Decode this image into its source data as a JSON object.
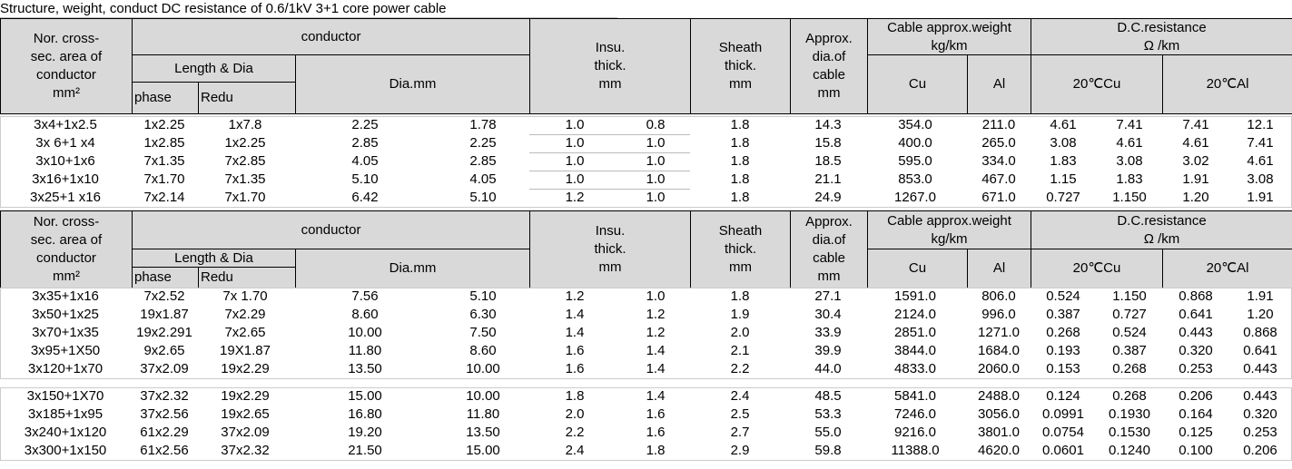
{
  "title": "Structure, weight, conduct DC resistance of 0.6/1kV 3+1 core power cable",
  "blocks": [
    {
      "header": {
        "size": "Nor. cross-\nsec. area of\nconductor\nmm²",
        "conductor": "conductor",
        "length_dia": "Length & Dia",
        "phase": "phase",
        "redu": "Redu",
        "dia": "Dia.mm",
        "insu": "Insu.\nthick.\nmm",
        "sheath": "Sheath\nthick.\nmm",
        "approx_dia": "Approx.\ndia.of\ncable\nmm",
        "weight": "Cable approx.weight\nkg/km",
        "cu": "Cu",
        "al": "Al",
        "dc_res": "D.C.resistance\nΩ /km",
        "cu20": "20℃Cu",
        "al20": "20℃Al"
      },
      "row_groups": [
        [
          [
            "3x4+1x2.5",
            "1x2.25",
            "1x7.8",
            "2.25",
            "1.78",
            "1.0",
            "0.8",
            "1.8",
            "14.3",
            "354.0",
            "211.0",
            "4.61",
            "7.41",
            "7.41",
            "12.1"
          ],
          [
            "3x 6+1 x4",
            "1x2.85",
            "1x2.25",
            "2.85",
            "2.25",
            "1.0",
            "1.0",
            "1.8",
            "15.8",
            "400.0",
            "265.0",
            "3.08",
            "4.61",
            "4.61",
            "7.41"
          ],
          [
            "3x10+1x6",
            "7x1.35",
            "7x2.85",
            "4.05",
            "2.85",
            "1.0",
            "1.0",
            "1.8",
            "18.5",
            "595.0",
            "334.0",
            "1.83",
            "3.08",
            "3.02",
            "4.61"
          ],
          [
            "3x16+1x10",
            "7x1.70",
            "7x1.35",
            "5.10",
            "4.05",
            "1.0",
            "1.0",
            "1.8",
            "21.1",
            "853.0",
            "467.0",
            "1.15",
            "1.83",
            "1.91",
            "3.08"
          ],
          [
            "3x25+1 x16",
            "7x2.14",
            "7x1.70",
            "6.42",
            "5.10",
            "1.2",
            "1.0",
            "1.8",
            "24.9",
            "1267.0",
            "671.0",
            "0.727",
            "1.150",
            "1.20",
            "1.91"
          ]
        ]
      ]
    },
    {
      "header": {
        "size": "Nor. cross-\nsec. area of\nconductor\nmm²",
        "conductor": "conductor",
        "length_dia": "Length & Dia",
        "phase": "phase",
        "redu": "Redu",
        "dia": "Dia.mm",
        "insu": "Insu.\nthick.\nmm",
        "sheath": "Sheath\nthick.\nmm",
        "approx_dia": "Approx.\ndia.of\ncable\nmm",
        "weight": "Cable approx.weight\nkg/km",
        "cu": "Cu",
        "al": "Al",
        "dc_res": "D.C.resistance\nΩ /km",
        "cu20": "20℃Cu",
        "al20": "20℃Al"
      },
      "row_groups": [
        [
          [
            "3x35+1x16",
            "7x2.52",
            "7x 1.70",
            "7.56",
            "5.10",
            "1.2",
            "1.0",
            "1.8",
            "27.1",
            "1591.0",
            "806.0",
            "0.524",
            "1.150",
            "0.868",
            "1.91"
          ],
          [
            "3x50+1x25",
            "19x1.87",
            "7x2.29",
            "8.60",
            "6.30",
            "1.4",
            "1.2",
            "1.9",
            "30.4",
            "2124.0",
            "996.0",
            "0.387",
            "0.727",
            "0.641",
            "1.20"
          ],
          [
            "3x70+1x35",
            "19x2.291",
            "7x2.65",
            "10.00",
            "7.50",
            "1.4",
            "1.2",
            "2.0",
            "33.9",
            "2851.0",
            "1271.0",
            "0.268",
            "0.524",
            "0.443",
            "0.868"
          ],
          [
            "3x95+1X50",
            "9x2.65",
            "19X1.87",
            "11.80",
            "8.60",
            "1.6",
            "1.4",
            "2.1",
            "39.9",
            "3844.0",
            "1684.0",
            "0.193",
            "0.387",
            "0.320",
            "0.641"
          ],
          [
            "3x120+1x70",
            "37x2.09",
            "19x2.29",
            "13.50",
            "10.00",
            "1.6",
            "1.4",
            "2.2",
            "44.0",
            "4833.0",
            "2060.0",
            "0.153",
            "0.268",
            "0.253",
            "0.443"
          ]
        ],
        [
          [
            "3x150+1X70",
            "37x2.32",
            "19x2.29",
            "15.00",
            "10.00",
            "1.8",
            "1.4",
            "2.4",
            "48.5",
            "5841.0",
            "2488.0",
            "0.124",
            "0.268",
            "0.206",
            "0.443"
          ],
          [
            "3x185+1x95",
            "37x2.56",
            "19x2.65",
            "16.80",
            "11.80",
            "2.0",
            "1.6",
            "2.5",
            "53.3",
            "7246.0",
            "3056.0",
            "0.0991",
            "0.1930",
            "0.164",
            "0.320"
          ],
          [
            "3x240+1x120",
            "61x2.29",
            "37x2.09",
            "19.20",
            "13.50",
            "2.2",
            "1.6",
            "2.7",
            "55.0",
            "9216.0",
            "3801.0",
            "0.0754",
            "0.1530",
            "0.125",
            "0.253"
          ],
          [
            "3x300+1x150",
            "61x2.56",
            "37x2.32",
            "21.50",
            "15.00",
            "2.4",
            "1.8",
            "2.9",
            "59.8",
            "11388.0",
            "4620.0",
            "0.0601",
            "0.1240",
            "0.100",
            "0.206"
          ]
        ]
      ]
    }
  ]
}
